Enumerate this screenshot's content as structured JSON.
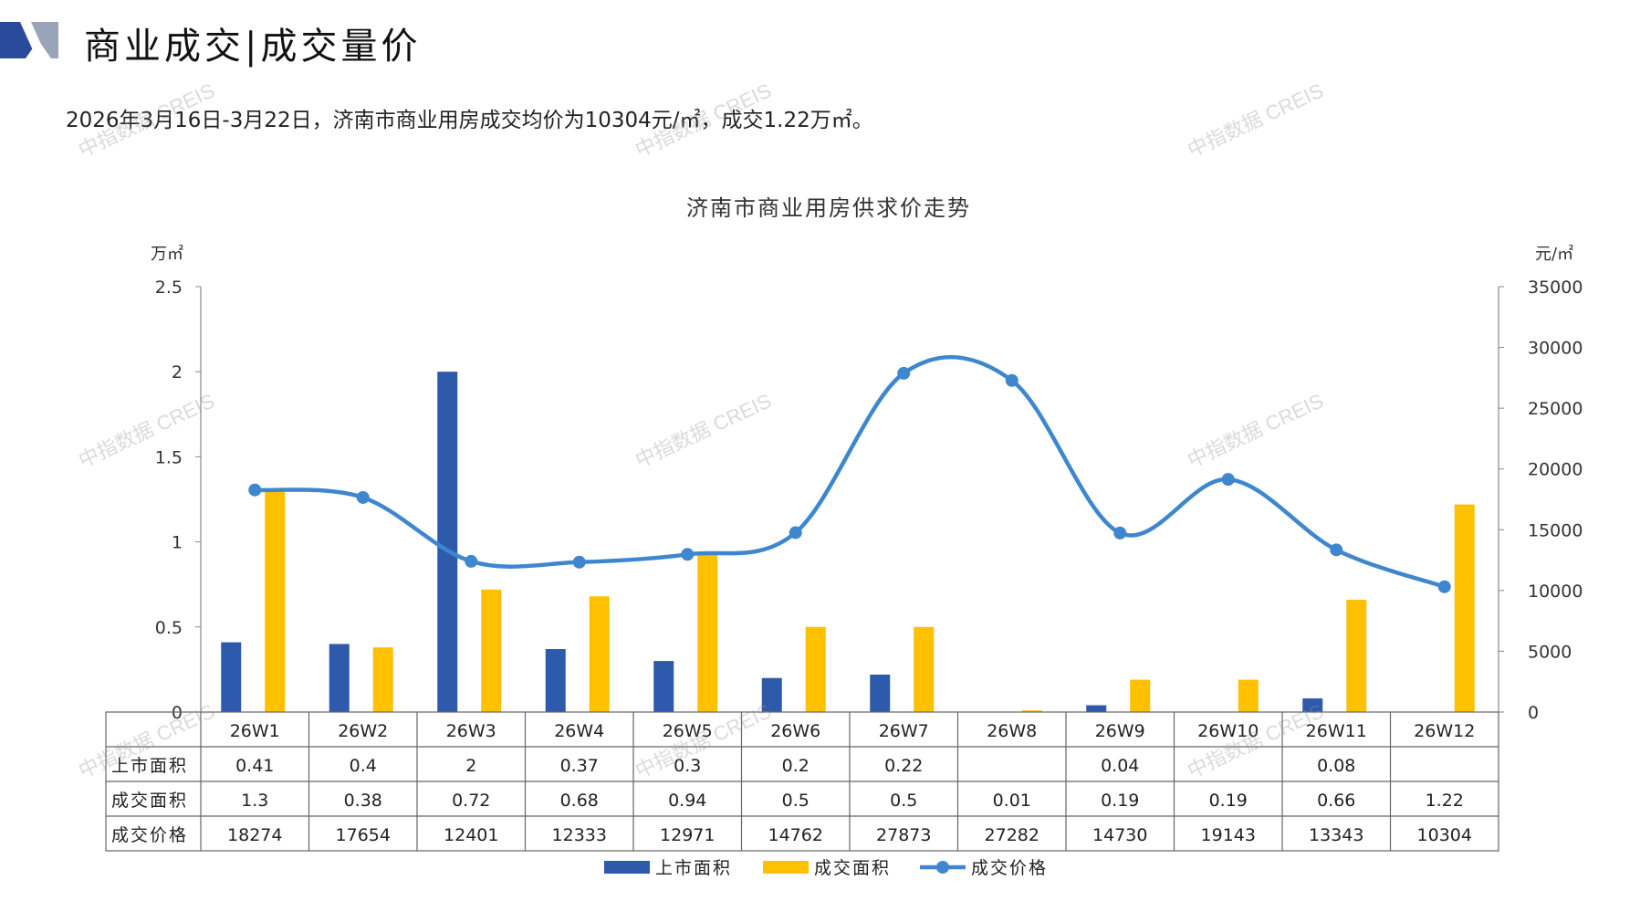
{
  "header": {
    "title": "商业成交|成交量价",
    "summary": "2026年3月16日-3月22日，济南市商业用房成交均价为10304元/㎡，成交1.22万㎡。"
  },
  "watermark": {
    "text": "中指数据 CREIS"
  },
  "colors": {
    "listed": "#2E5AAC",
    "traded": "#FFC000",
    "price": "#3E87CF",
    "logo_dark": "#2A4A9B",
    "logo_light": "#9AA4B8"
  },
  "legend_icons": {
    "bar": "bar-swatch",
    "line": "line-with-dot-marker"
  },
  "chart_data": {
    "type": "bar",
    "title": "济南市商业用房供求价走势",
    "categories": [
      "26W1",
      "26W2",
      "26W3",
      "26W4",
      "26W5",
      "26W6",
      "26W7",
      "26W8",
      "26W9",
      "26W10",
      "26W11",
      "26W12"
    ],
    "y_left": {
      "unit": "万㎡",
      "ylim": [
        0,
        2.5
      ],
      "ticks": [
        "0",
        "0.5",
        "1",
        "1.5",
        "2",
        "2.5"
      ]
    },
    "y_right": {
      "unit": "元/㎡",
      "ylim": [
        0,
        35000
      ],
      "ticks": [
        "0",
        "5000",
        "10000",
        "15000",
        "20000",
        "25000",
        "30000",
        "35000"
      ]
    },
    "series": [
      {
        "name": "上市面积",
        "type": "bar",
        "values": [
          0.41,
          0.4,
          2,
          0.37,
          0.3,
          0.2,
          0.22,
          null,
          0.04,
          null,
          0.08,
          null
        ],
        "labels": [
          "0.41",
          "0.4",
          "2",
          "0.37",
          "0.3",
          "0.2",
          "0.22",
          "",
          "0.04",
          "",
          "0.08",
          ""
        ]
      },
      {
        "name": "成交面积",
        "type": "bar",
        "values": [
          1.3,
          0.38,
          0.72,
          0.68,
          0.94,
          0.5,
          0.5,
          0.01,
          0.19,
          0.19,
          0.66,
          1.22
        ],
        "labels": [
          "1.3",
          "0.38",
          "0.72",
          "0.68",
          "0.94",
          "0.5",
          "0.5",
          "0.01",
          "0.19",
          "0.19",
          "0.66",
          "1.22"
        ]
      },
      {
        "name": "成交价格",
        "type": "line",
        "axis": "right",
        "values": [
          18274,
          17654,
          12401,
          12333,
          12971,
          14762,
          27873,
          27282,
          14730,
          19143,
          13343,
          10304
        ],
        "labels": [
          "18274",
          "17654",
          "12401",
          "12333",
          "12971",
          "14762",
          "27873",
          "27282",
          "14730",
          "19143",
          "13343",
          "10304"
        ]
      }
    ],
    "grid": false,
    "legend": "bottom"
  }
}
